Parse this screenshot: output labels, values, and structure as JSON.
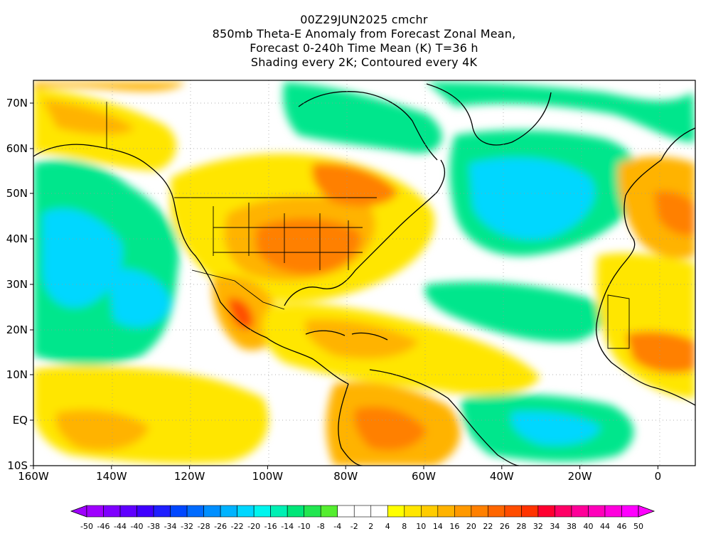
{
  "title": {
    "lines": [
      "00Z29JUN2025 cmchr",
      "850mb Theta-E Anomaly from Forecast Zonal Mean,",
      "Forecast 0-240h Time Mean (K) T=36 h",
      "Shading every 2K; Contoured every 4K"
    ]
  },
  "axes": {
    "x_ticks": [
      "160W",
      "140W",
      "120W",
      "100W",
      "80W",
      "60W",
      "40W",
      "20W",
      "0"
    ],
    "y_ticks": [
      "70N",
      "60N",
      "50N",
      "40N",
      "30N",
      "20N",
      "10N",
      "EQ",
      "10S"
    ]
  },
  "colorbar": {
    "labels": [
      "-50",
      "-46",
      "-44",
      "-40",
      "-38",
      "-34",
      "-32",
      "-28",
      "-26",
      "-22",
      "-20",
      "-16",
      "-14",
      "-10",
      "-8",
      "-4",
      "-2",
      "2",
      "4",
      "8",
      "10",
      "14",
      "16",
      "20",
      "22",
      "26",
      "28",
      "32",
      "34",
      "38",
      "40",
      "44",
      "46",
      "50"
    ],
    "colors": [
      "#9f00ff",
      "#7f00ff",
      "#5f00ff",
      "#3f00ff",
      "#1f1fff",
      "#0047ff",
      "#006bff",
      "#008fff",
      "#00b3ff",
      "#00d7ff",
      "#00f5ee",
      "#00f0b4",
      "#00e678",
      "#22e650",
      "#55ee30",
      "#ffffff",
      "#ffffff",
      "#ffffff",
      "#ffff00",
      "#ffe600",
      "#ffcc00",
      "#ffb300",
      "#ff9900",
      "#ff8000",
      "#ff6600",
      "#ff4d00",
      "#ff3300",
      "#ff0030",
      "#ff0066",
      "#ff0099",
      "#ff00bb",
      "#ff00dd",
      "#ff00ff"
    ]
  },
  "map_colors": {
    "ocean_cool": "#00e68c",
    "ocean_cold": "#00d7ff",
    "neutral": "#ffffff",
    "warm_yellow": "#ffe600",
    "warm_orange": "#ffb300",
    "hot": "#ff8000",
    "very_hot": "#ff4d00",
    "coast": "#000000"
  }
}
